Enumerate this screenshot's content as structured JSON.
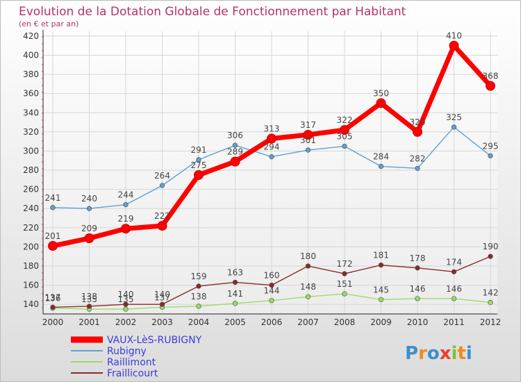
{
  "chart_data": {
    "type": "line",
    "title": "Evolution de la Dotation Globale de Fonctionnement par Habitant",
    "subtitle": "(en € et par an)",
    "xlabel": "",
    "ylabel": "",
    "x": [
      "2000",
      "2001",
      "2002",
      "2003",
      "2004",
      "2005",
      "2006",
      "2007",
      "2008",
      "2009",
      "2010",
      "2011",
      "2012"
    ],
    "ylim": [
      130,
      425
    ],
    "yticks": [
      140,
      160,
      180,
      200,
      220,
      240,
      260,
      280,
      300,
      320,
      340,
      360,
      380,
      400,
      420
    ],
    "grid": true,
    "legend_position": "bottom-left",
    "series": [
      {
        "name": "VAUX-LèS-RUBIGNY",
        "color": "#ff0000",
        "values": [
          201,
          209,
          219,
          222,
          275,
          289,
          313,
          317,
          322,
          350,
          320,
          410,
          368
        ]
      },
      {
        "name": "Rubigny",
        "color": "#5fa0d0",
        "values": [
          241,
          240,
          244,
          264,
          291,
          306,
          294,
          301,
          305,
          284,
          282,
          325,
          295
        ]
      },
      {
        "name": "Raillimont",
        "color": "#99dd66",
        "values": [
          136,
          135,
          135,
          137,
          138,
          141,
          144,
          148,
          151,
          145,
          146,
          146,
          142
        ]
      },
      {
        "name": "Fraillicourt",
        "color": "#8b2a2a",
        "values": [
          137,
          138,
          140,
          140,
          159,
          163,
          160,
          180,
          172,
          181,
          178,
          174,
          190
        ]
      }
    ]
  },
  "branding": {
    "logo_text": "Proxiti"
  }
}
